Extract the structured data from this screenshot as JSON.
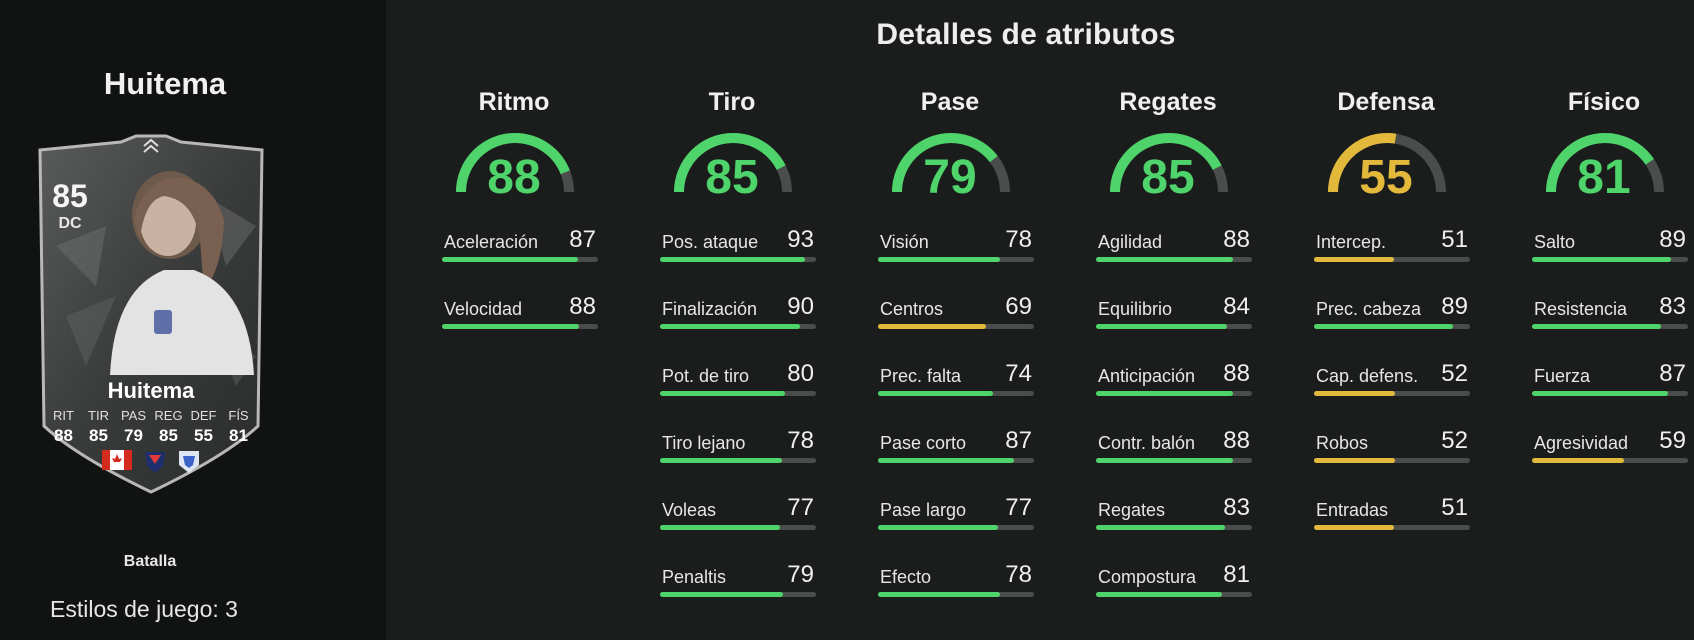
{
  "player": {
    "name": "Huitema",
    "rating": "85",
    "position": "DC",
    "card_stats": [
      {
        "label": "RIT",
        "value": "88"
      },
      {
        "label": "TIR",
        "value": "85"
      },
      {
        "label": "PAS",
        "value": "79"
      },
      {
        "label": "REG",
        "value": "85"
      },
      {
        "label": "DEF",
        "value": "55"
      },
      {
        "label": "FÍS",
        "value": "81"
      }
    ],
    "badges": [
      "canada-flag-icon",
      "league-crest-icon",
      "club-crest-icon"
    ]
  },
  "chemistry_style": "Batalla",
  "playstyles_label": "Estilos de juego: 3",
  "section_title": "Detalles de atributos",
  "colors": {
    "green": "#4ed46a",
    "yellow": "#e2b93b",
    "track": "#4a4d4c"
  },
  "categories": [
    {
      "name": "Ritmo",
      "value": 88,
      "attributes": [
        {
          "name": "Aceleración",
          "value": 87
        },
        {
          "name": "Velocidad",
          "value": 88
        }
      ]
    },
    {
      "name": "Tiro",
      "value": 85,
      "attributes": [
        {
          "name": "Pos. ataque",
          "value": 93
        },
        {
          "name": "Finalización",
          "value": 90
        },
        {
          "name": "Pot. de tiro",
          "value": 80
        },
        {
          "name": "Tiro lejano",
          "value": 78
        },
        {
          "name": "Voleas",
          "value": 77
        },
        {
          "name": "Penaltis",
          "value": 79
        }
      ]
    },
    {
      "name": "Pase",
      "value": 79,
      "attributes": [
        {
          "name": "Visión",
          "value": 78
        },
        {
          "name": "Centros",
          "value": 69
        },
        {
          "name": "Prec. falta",
          "value": 74
        },
        {
          "name": "Pase corto",
          "value": 87
        },
        {
          "name": "Pase largo",
          "value": 77
        },
        {
          "name": "Efecto",
          "value": 78
        }
      ]
    },
    {
      "name": "Regates",
      "value": 85,
      "attributes": [
        {
          "name": "Agilidad",
          "value": 88
        },
        {
          "name": "Equilibrio",
          "value": 84
        },
        {
          "name": "Anticipación",
          "value": 88
        },
        {
          "name": "Contr. balón",
          "value": 88
        },
        {
          "name": "Regates",
          "value": 83
        },
        {
          "name": "Compostura",
          "value": 81
        }
      ]
    },
    {
      "name": "Defensa",
      "value": 55,
      "attributes": [
        {
          "name": "Intercep.",
          "value": 51
        },
        {
          "name": "Prec. cabeza",
          "value": 89
        },
        {
          "name": "Cap. defens.",
          "value": 52
        },
        {
          "name": "Robos",
          "value": 52
        },
        {
          "name": "Entradas",
          "value": 51
        }
      ]
    },
    {
      "name": "Físico",
      "value": 81,
      "attributes": [
        {
          "name": "Salto",
          "value": 89
        },
        {
          "name": "Resistencia",
          "value": 83
        },
        {
          "name": "Fuerza",
          "value": 87
        },
        {
          "name": "Agresividad",
          "value": 59
        }
      ]
    }
  ]
}
